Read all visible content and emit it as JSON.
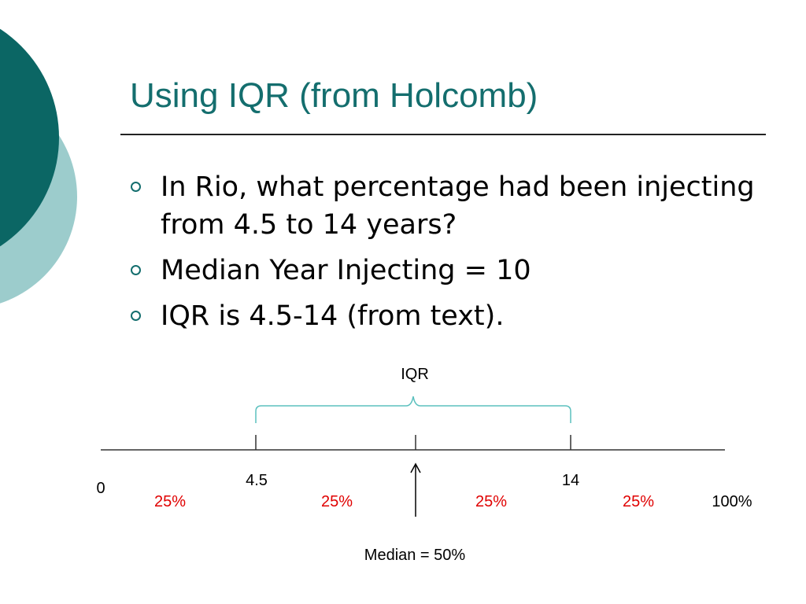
{
  "slide": {
    "title": "Using IQR (from Holcomb)",
    "bullets": [
      "In Rio, what percentage had been injecting from 4.5 to 14 years?",
      "Median Year Injecting = 10",
      "IQR is 4.5-14 (from text)."
    ]
  },
  "diagram": {
    "brace_label": "IQR",
    "start_label": "0",
    "end_label": "100%",
    "marks": [
      {
        "label": "4.5"
      },
      {
        "label": ""
      },
      {
        "label": "14"
      }
    ],
    "segments": [
      "25%",
      "25%",
      "25%",
      "25%"
    ],
    "median_label": "Median = 50%"
  },
  "colors": {
    "title": "#146e6e",
    "accent_dark": "#0b6664",
    "accent_light": "#9ccccc",
    "brace": "#5bc0be",
    "segment_text": "#e00000"
  }
}
